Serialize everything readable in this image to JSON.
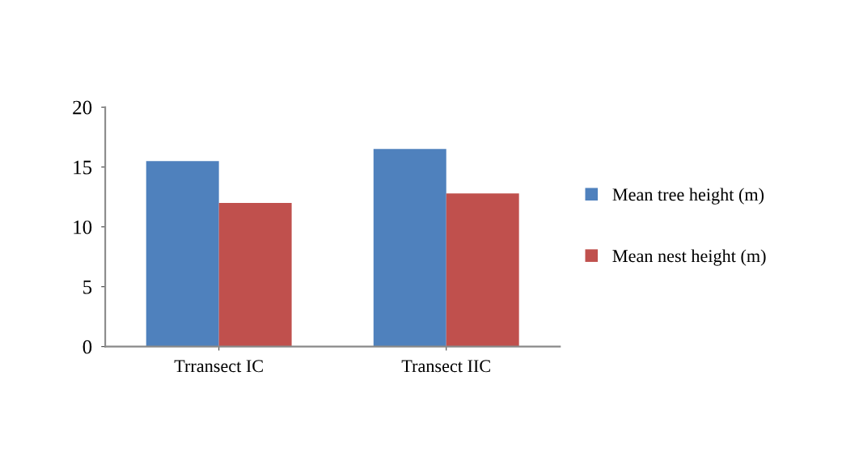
{
  "chart_data": {
    "type": "bar",
    "categories": [
      "Trransect IC",
      "Transect IIC"
    ],
    "series": [
      {
        "name": "Mean tree height (m)",
        "color": "#4f81bd",
        "values": [
          15.5,
          16.5
        ]
      },
      {
        "name": "Mean nest height (m)",
        "color": "#c0504d",
        "values": [
          12.0,
          12.8
        ]
      }
    ],
    "ylim": [
      0,
      20
    ],
    "yticks": [
      0,
      5,
      10,
      15,
      20
    ],
    "grid": false,
    "legend": "right"
  }
}
